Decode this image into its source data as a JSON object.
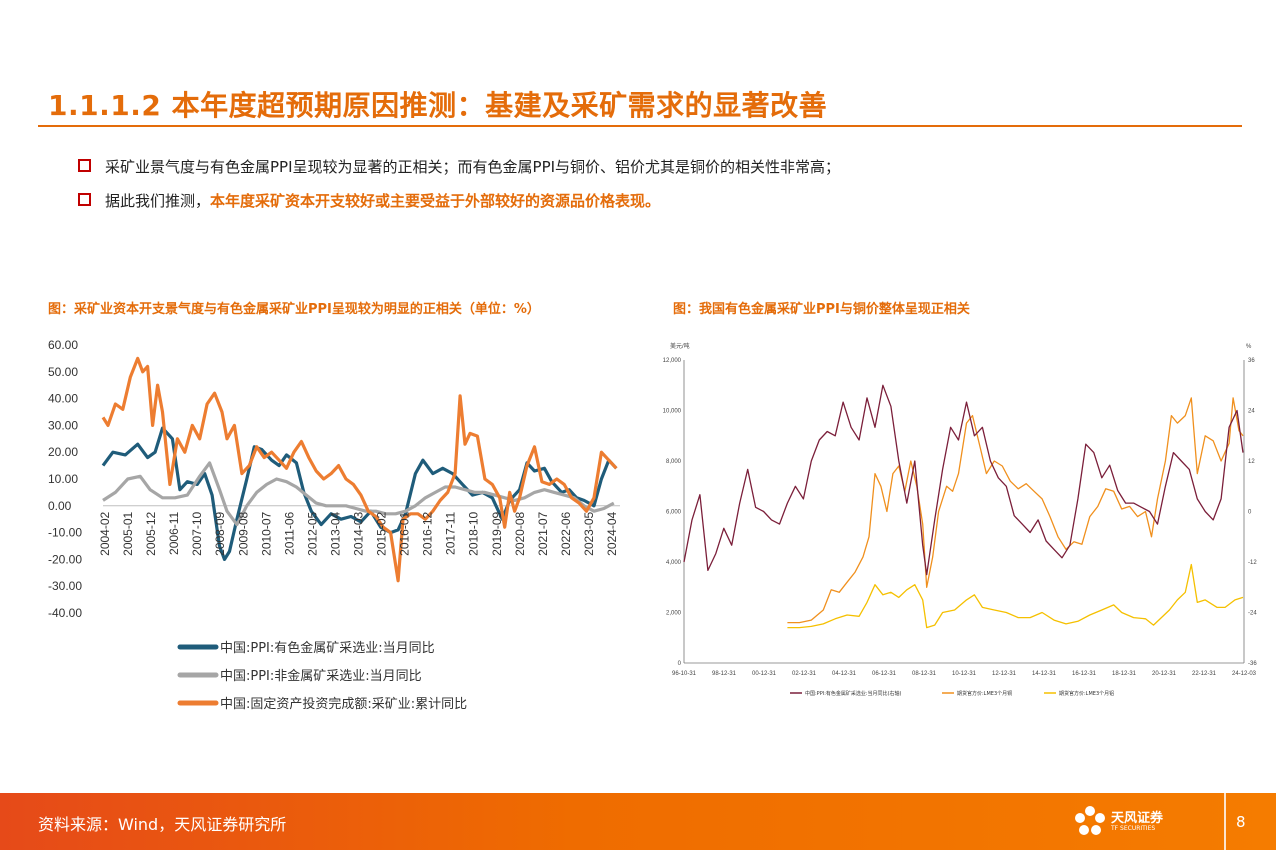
{
  "header": {
    "title": "1.1.1.2 本年度超预期原因推测：基建及采矿需求的显著改善",
    "bullets": [
      {
        "text": "采矿业景气度与有色金属PPI呈现较为显著的正相关；而有色金属PPI与铜价、铝价尤其是铜价的相关性非常高；",
        "highlight": ""
      },
      {
        "text": "据此我们推测，",
        "highlight": "本年度采矿资本开支较好或主要受益于外部较好的资源品价格表现。"
      }
    ]
  },
  "left_caption": "图：采矿业资本开支景气度与有色金属采矿业PPI呈现较为明显的正相关（单位：%）",
  "right_caption": "图：我国有色金属采矿业PPI与铜价整体呈现正相关",
  "colors": {
    "accent": "#e46c0a",
    "bullet_box": "#c00000",
    "ppi_nonferrous": "#1f5c7a",
    "ppi_nonmetal": "#a6a6a6",
    "fai_mining": "#ed7d31",
    "r_ppi": "#7b1f3a",
    "r_copper": "#f0901e",
    "r_alu": "#f5c000"
  },
  "chart_data": [
    {
      "type": "line",
      "title": "",
      "ylim": [
        -40,
        60
      ],
      "y_ticks": [
        "60.00",
        "50.00",
        "40.00",
        "30.00",
        "20.00",
        "10.00",
        "0.00",
        "-10.00",
        "-20.00",
        "-30.00",
        "-40.00"
      ],
      "x_ticks": [
        "2004-02",
        "2005-01",
        "2005-12",
        "2006-11",
        "2007-10",
        "2008-09",
        "2009-08",
        "2010-07",
        "2011-06",
        "2012-05",
        "2013-04",
        "2014-03",
        "2015-02",
        "2016-01",
        "2016-12",
        "2017-11",
        "2018-10",
        "2019-09",
        "2020-08",
        "2021-07",
        "2022-06",
        "2023-05",
        "2024-04"
      ],
      "legend_position": "bottom",
      "grid": false,
      "series": [
        {
          "name": "中国:PPI:有色金属矿采选业:当月同比",
          "x": [
            2004.1,
            2004.5,
            2005.0,
            2005.5,
            2005.9,
            2006.2,
            2006.5,
            2006.9,
            2007.2,
            2007.5,
            2007.9,
            2008.2,
            2008.5,
            2008.8,
            2009.0,
            2009.2,
            2009.5,
            2009.9,
            2010.2,
            2010.5,
            2010.9,
            2011.2,
            2011.5,
            2011.9,
            2012.2,
            2012.5,
            2012.9,
            2013.3,
            2013.7,
            2014.1,
            2014.5,
            2014.9,
            2015.3,
            2015.7,
            2016.0,
            2016.3,
            2016.7,
            2017.0,
            2017.4,
            2017.8,
            2018.2,
            2018.6,
            2019.0,
            2019.4,
            2019.8,
            2020.2,
            2020.5,
            2020.9,
            2021.2,
            2021.5,
            2021.9,
            2022.2,
            2022.6,
            2022.9,
            2023.2,
            2023.5,
            2023.9,
            2024.2,
            2024.5,
            2024.8
          ],
          "y": [
            15,
            20,
            19,
            23,
            18,
            20,
            29,
            25,
            6,
            9,
            8,
            12,
            4,
            -15,
            -20,
            -17,
            -5,
            10,
            22,
            21,
            17,
            15,
            19,
            16,
            5,
            -2,
            -7,
            -3,
            -5,
            -4,
            -6,
            -2,
            -8,
            -10,
            -9,
            -3,
            12,
            17,
            12,
            14,
            12,
            8,
            4,
            5,
            3,
            -5,
            2,
            6,
            16,
            13,
            14,
            9,
            5,
            6,
            3,
            2,
            0,
            10,
            17,
            14
          ]
        },
        {
          "name": "中国:PPI:非金属矿采选业:当月同比",
          "x": [
            2004.1,
            2004.6,
            2005.1,
            2005.6,
            2006.0,
            2006.5,
            2007.0,
            2007.5,
            2008.0,
            2008.4,
            2008.8,
            2009.1,
            2009.5,
            2009.9,
            2010.3,
            2010.7,
            2011.1,
            2011.5,
            2011.9,
            2012.3,
            2012.7,
            2013.1,
            2013.5,
            2013.9,
            2014.3,
            2014.7,
            2015.1,
            2015.5,
            2015.9,
            2016.3,
            2016.7,
            2017.1,
            2017.5,
            2017.9,
            2018.3,
            2018.7,
            2019.1,
            2019.5,
            2019.9,
            2020.3,
            2020.7,
            2021.1,
            2021.5,
            2021.9,
            2022.3,
            2022.7,
            2023.1,
            2023.5,
            2023.9,
            2024.3,
            2024.7
          ],
          "y": [
            2,
            5,
            10,
            11,
            6,
            3,
            3,
            4,
            11,
            16,
            6,
            -2,
            -7,
            0,
            5,
            8,
            10,
            9,
            7,
            4,
            1,
            0,
            0,
            0,
            -1,
            -2,
            -2,
            -3,
            -3,
            -2,
            0,
            3,
            5,
            7,
            7,
            6,
            5,
            5,
            4,
            3,
            2,
            3,
            5,
            6,
            5,
            4,
            3,
            0,
            -2,
            -1,
            1
          ]
        },
        {
          "name": "中国:固定资产投资完成额:采矿业:累计同比",
          "x": [
            2004.1,
            2004.3,
            2004.6,
            2004.9,
            2005.2,
            2005.5,
            2005.7,
            2005.9,
            2006.1,
            2006.3,
            2006.5,
            2006.8,
            2007.1,
            2007.4,
            2007.7,
            2008.0,
            2008.3,
            2008.6,
            2008.9,
            2009.1,
            2009.4,
            2009.7,
            2010.0,
            2010.3,
            2010.6,
            2010.9,
            2011.2,
            2011.5,
            2011.8,
            2012.1,
            2012.4,
            2012.7,
            2013.0,
            2013.3,
            2013.6,
            2013.9,
            2014.2,
            2014.5,
            2014.8,
            2015.1,
            2015.4,
            2015.7,
            2016.0,
            2016.2,
            2016.5,
            2016.8,
            2017.1,
            2017.4,
            2017.7,
            2018.0,
            2018.3,
            2018.5,
            2018.7,
            2018.9,
            2019.2,
            2019.5,
            2019.8,
            2020.1,
            2020.3,
            2020.5,
            2020.7,
            2020.9,
            2021.2,
            2021.5,
            2021.8,
            2022.1,
            2022.4,
            2022.7,
            2023.0,
            2023.3,
            2023.6,
            2023.9,
            2024.2,
            2024.5,
            2024.8
          ],
          "y": [
            33,
            30,
            38,
            36,
            48,
            55,
            50,
            52,
            30,
            45,
            35,
            8,
            25,
            20,
            30,
            25,
            38,
            42,
            35,
            25,
            30,
            12,
            15,
            22,
            18,
            20,
            17,
            14,
            20,
            24,
            18,
            13,
            10,
            12,
            15,
            10,
            8,
            4,
            -2,
            -4,
            -8,
            -10,
            -28,
            -5,
            -3,
            -3,
            -5,
            -2,
            2,
            5,
            12,
            41,
            23,
            27,
            26,
            10,
            8,
            3,
            -8,
            5,
            -2,
            3,
            15,
            22,
            9,
            8,
            10,
            8,
            3,
            1,
            -2,
            3,
            20,
            17,
            14
          ]
        }
      ]
    },
    {
      "type": "line",
      "title": "",
      "left_unit": "美元/吨",
      "right_unit": "%",
      "left_ylim": [
        0,
        12000
      ],
      "right_ylim": [
        -36,
        36
      ],
      "left_ticks": [
        "12,000",
        "10,000",
        "8,000",
        "6,000",
        "4,000",
        "2,000",
        "0"
      ],
      "right_ticks": [
        "36",
        "24",
        "12",
        "0",
        "-12",
        "-24",
        "-36"
      ],
      "x_ticks": [
        "96-10-31",
        "98-12-31",
        "00-12-31",
        "02-12-31",
        "04-12-31",
        "06-12-31",
        "08-12-31",
        "10-12-31",
        "12-12-31",
        "14-12-31",
        "16-12-31",
        "18-12-31",
        "20-12-31",
        "22-12-31",
        "24-12-03"
      ],
      "legend_position": "bottom",
      "grid": false,
      "series": [
        {
          "name": "中国:PPI:有色金属矿采选业:当月同比(右轴)",
          "axis": "right",
          "x": [
            1996.8,
            1997.2,
            1997.6,
            1998.0,
            1998.4,
            1998.8,
            1999.2,
            1999.6,
            2000.0,
            2000.4,
            2000.8,
            2001.2,
            2001.6,
            2002.0,
            2002.4,
            2002.8,
            2003.2,
            2003.6,
            2004.0,
            2004.4,
            2004.8,
            2005.2,
            2005.6,
            2006.0,
            2006.4,
            2006.8,
            2007.2,
            2007.6,
            2008.0,
            2008.4,
            2008.8,
            2009.0,
            2009.4,
            2009.8,
            2010.2,
            2010.6,
            2011.0,
            2011.4,
            2011.8,
            2012.2,
            2012.6,
            2013.0,
            2013.4,
            2013.8,
            2014.2,
            2014.6,
            2015.0,
            2015.4,
            2015.8,
            2016.2,
            2016.6,
            2017.0,
            2017.4,
            2017.8,
            2018.2,
            2018.6,
            2019.0,
            2019.4,
            2019.8,
            2020.2,
            2020.6,
            2021.0,
            2021.4,
            2021.8,
            2022.2,
            2022.6,
            2023.0,
            2023.4,
            2023.8,
            2024.2,
            2024.6,
            2024.9
          ],
          "y": [
            -12,
            -2,
            4,
            -14,
            -10,
            -4,
            -8,
            2,
            10,
            1,
            0,
            -2,
            -3,
            2,
            6,
            3,
            12,
            17,
            19,
            18,
            26,
            20,
            17,
            27,
            20,
            30,
            25,
            12,
            2,
            12,
            -8,
            -15,
            -2,
            10,
            20,
            17,
            26,
            18,
            20,
            12,
            8,
            6,
            -1,
            -3,
            -5,
            -2,
            -7,
            -9,
            -11,
            -8,
            3,
            16,
            14,
            8,
            11,
            5,
            2,
            2,
            1,
            0,
            -3,
            6,
            14,
            12,
            10,
            3,
            0,
            -2,
            3,
            20,
            24,
            14
          ]
        },
        {
          "name": "期货官方价:LME3个月铜",
          "axis": "left",
          "x": [
            2002.0,
            2002.6,
            2003.2,
            2003.8,
            2004.2,
            2004.6,
            2005.0,
            2005.4,
            2005.8,
            2006.1,
            2006.4,
            2006.7,
            2007.0,
            2007.3,
            2007.6,
            2007.9,
            2008.2,
            2008.5,
            2008.8,
            2009.0,
            2009.3,
            2009.6,
            2010.0,
            2010.3,
            2010.6,
            2011.0,
            2011.3,
            2011.7,
            2012.0,
            2012.4,
            2012.8,
            2013.2,
            2013.6,
            2014.0,
            2014.4,
            2014.8,
            2015.2,
            2015.6,
            2016.0,
            2016.4,
            2016.8,
            2017.2,
            2017.6,
            2018.0,
            2018.4,
            2018.8,
            2019.2,
            2019.6,
            2020.0,
            2020.3,
            2020.6,
            2021.0,
            2021.3,
            2021.6,
            2022.0,
            2022.3,
            2022.6,
            2023.0,
            2023.4,
            2023.8,
            2024.2,
            2024.4,
            2024.7,
            2024.9
          ],
          "y": [
            1600,
            1600,
            1700,
            2100,
            2900,
            2800,
            3200,
            3600,
            4200,
            5000,
            7500,
            7000,
            6000,
            7500,
            7800,
            6800,
            8000,
            7000,
            5500,
            3000,
            4200,
            6000,
            7000,
            6800,
            7500,
            9500,
            9800,
            8500,
            7500,
            8000,
            7800,
            7200,
            6900,
            7100,
            6800,
            6500,
            5800,
            5000,
            4500,
            4800,
            4700,
            5800,
            6200,
            6900,
            6800,
            6100,
            6200,
            5800,
            6000,
            5000,
            6500,
            8000,
            9800,
            9500,
            9800,
            10500,
            7500,
            9000,
            8800,
            8000,
            8700,
            10500,
            9200,
            9000
          ]
        },
        {
          "name": "期货官方价:LME3个月铝",
          "axis": "left",
          "x": [
            2002.0,
            2002.6,
            2003.2,
            2003.8,
            2004.4,
            2005.0,
            2005.6,
            2006.0,
            2006.4,
            2006.8,
            2007.2,
            2007.6,
            2008.0,
            2008.4,
            2008.8,
            2009.0,
            2009.4,
            2009.8,
            2010.4,
            2011.0,
            2011.4,
            2011.8,
            2012.4,
            2013.0,
            2013.6,
            2014.2,
            2014.8,
            2015.4,
            2016.0,
            2016.6,
            2017.2,
            2017.8,
            2018.4,
            2018.8,
            2019.4,
            2020.0,
            2020.4,
            2020.8,
            2021.2,
            2021.6,
            2022.0,
            2022.3,
            2022.6,
            2023.0,
            2023.6,
            2024.0,
            2024.5,
            2024.9
          ],
          "y": [
            1400,
            1400,
            1450,
            1550,
            1750,
            1900,
            1850,
            2400,
            3100,
            2700,
            2800,
            2600,
            2900,
            3100,
            2500,
            1400,
            1500,
            2000,
            2100,
            2500,
            2700,
            2200,
            2100,
            2000,
            1800,
            1800,
            2000,
            1700,
            1550,
            1650,
            1900,
            2100,
            2300,
            2000,
            1800,
            1750,
            1500,
            1800,
            2100,
            2500,
            2800,
            3900,
            2400,
            2500,
            2200,
            2200,
            2500,
            2600
          ]
        }
      ]
    }
  ],
  "footer": {
    "source": "资料来源：Wind，天风证券研究所",
    "logo_name": "天风证券",
    "logo_sub": "TF SECURITIES",
    "page_number": "8"
  }
}
